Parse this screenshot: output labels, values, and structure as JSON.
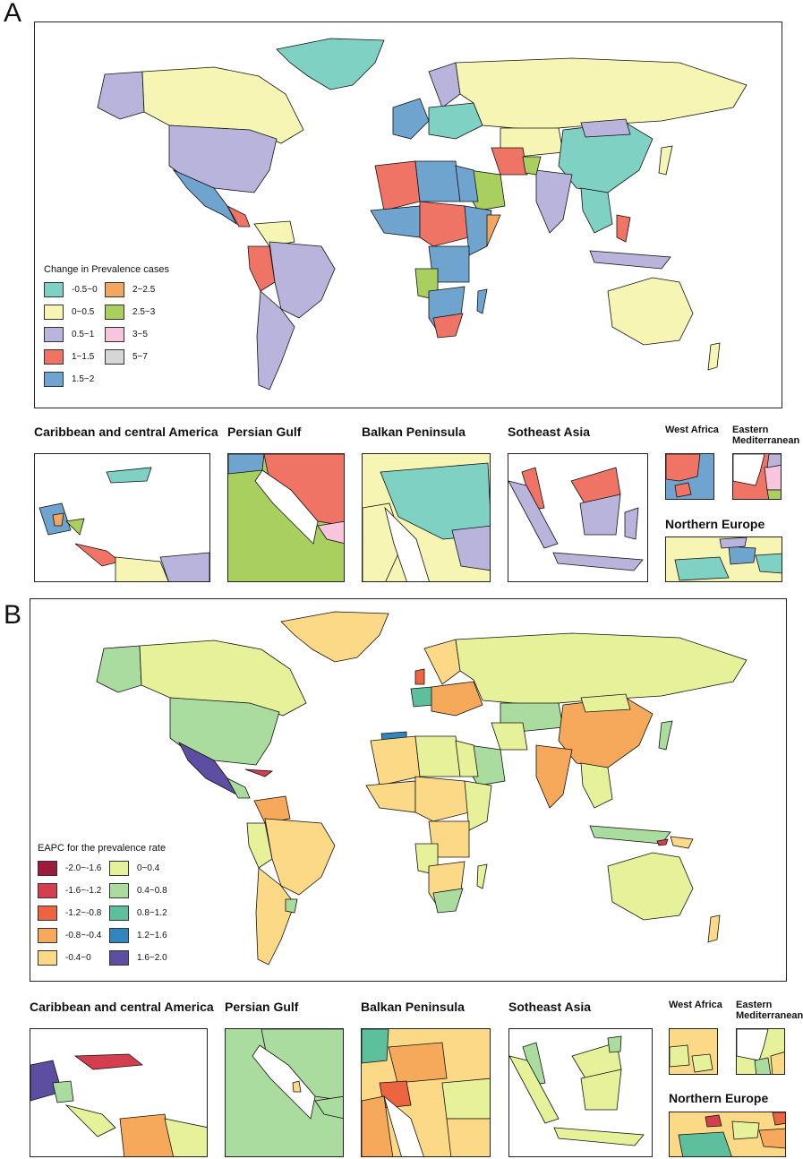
{
  "panel_a": {
    "letter": "A",
    "legend": {
      "title": "Change in Prevalence cases",
      "items": [
        {
          "label": "-0.5~0",
          "color": "#7fd1c3"
        },
        {
          "label": "0~0.5",
          "color": "#f7f5b4"
        },
        {
          "label": "0.5~1",
          "color": "#b9b4dc"
        },
        {
          "label": "1~1.5",
          "color": "#ef7466"
        },
        {
          "label": "1.5~2",
          "color": "#6fa4cf"
        },
        {
          "label": "2~2.5",
          "color": "#f3a660"
        },
        {
          "label": "2.5~3",
          "color": "#a9d05f"
        },
        {
          "label": "3~5",
          "color": "#f7c5de"
        },
        {
          "label": "5~7",
          "color": "#d6d6d6"
        }
      ]
    },
    "insets": {
      "caribbean": "Caribbean and central America",
      "persian_gulf": "Persian Gulf",
      "balkan": "Balkan Peninsula",
      "southeast_asia": "Sotheast Asia",
      "west_africa": "West Africa",
      "eastern_med": "Eastern Mediterranean",
      "northern_europe": "Northern Europe"
    }
  },
  "panel_b": {
    "letter": "B",
    "legend": {
      "title": "EAPC for the prevalence rate",
      "items": [
        {
          "label": "-2.0~-1.6",
          "color": "#9e1a3f"
        },
        {
          "label": "-1.6~-1.2",
          "color": "#d53e4f"
        },
        {
          "label": "-1.2~-0.8",
          "color": "#ec6440"
        },
        {
          "label": "-0.8~-0.4",
          "color": "#f6a95a"
        },
        {
          "label": "-0.4~0",
          "color": "#fcd986"
        },
        {
          "label": "0~0.4",
          "color": "#e6f199"
        },
        {
          "label": "0.4~0.8",
          "color": "#a9dc9e"
        },
        {
          "label": "0.8~1.2",
          "color": "#5ebf9c"
        },
        {
          "label": "1.2~1.6",
          "color": "#3186bd"
        },
        {
          "label": "1.6~2.0",
          "color": "#5d4ea2"
        }
      ]
    },
    "insets": {
      "caribbean": "Caribbean and central America",
      "persian_gulf": "Persian Gulf",
      "balkan": "Balkan Peninsula",
      "southeast_asia": "Sotheast Asia",
      "west_africa": "West Africa",
      "eastern_med": "Eastern Mediterranean",
      "northern_europe": "Northern Europe"
    }
  }
}
